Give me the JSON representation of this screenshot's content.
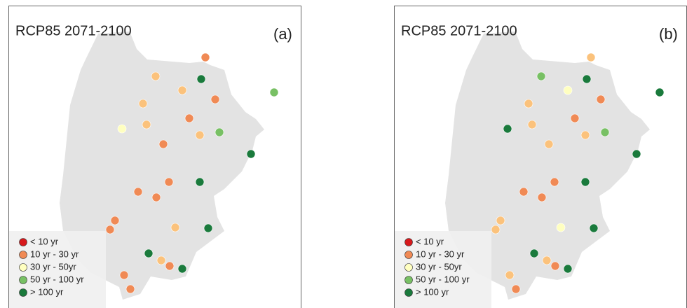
{
  "panels": [
    {
      "title": "RCP85 2071-2100",
      "tag": "(a)",
      "points": [
        "#f08a55",
        "#fbc27c",
        "#1a7a3c",
        "#fbc27c",
        "#78c064",
        "#f08a55",
        "#fbc27c",
        "#f08a55",
        "#ffffc0",
        "#fbc27c",
        "#fbc27c",
        "#78c064",
        "#f08a55",
        "#1a7a3c",
        "#f08a55",
        "#1a7a3c",
        "#f08a55",
        "#f08a55",
        "#f08a55",
        "#f08a55",
        "#fbc27c",
        "#1a7a3c",
        "#1a7a3c",
        "#fbc27c",
        "#f08a55",
        "#1a7a3c",
        "#f08a55",
        "#f08a55"
      ]
    },
    {
      "title": "RCP85 2071-2100",
      "tag": "(b)",
      "points": [
        "#fbc27c",
        "#78c064",
        "#1a7a3c",
        "#ffffc0",
        "#1a7a3c",
        "#f08a55",
        "#fbc27c",
        "#f08a55",
        "#1a7a3c",
        "#fbc27c",
        "#fbc27c",
        "#78c064",
        "#fbc27c",
        "#1a7a3c",
        "#f08a55",
        "#1a7a3c",
        "#f08a55",
        "#f08a55",
        "#fbc27c",
        "#fbc27c",
        "#ffffc0",
        "#1a7a3c",
        "#1a7a3c",
        "#fbc27c",
        "#f08a55",
        "#1a7a3c",
        "#fbc27c",
        "#f08a55"
      ]
    }
  ],
  "legend": [
    {
      "label": "< 10 yr",
      "color": "#d7191c"
    },
    {
      "label": "10 yr - 30 yr",
      "color": "#f08a55"
    },
    {
      "label": "30 yr - 50yr",
      "color": "#ffffc0"
    },
    {
      "label": "50 yr - 100 yr",
      "color": "#78c064"
    },
    {
      "label": "> 100 yr",
      "color": "#1a7a3c"
    }
  ]
}
